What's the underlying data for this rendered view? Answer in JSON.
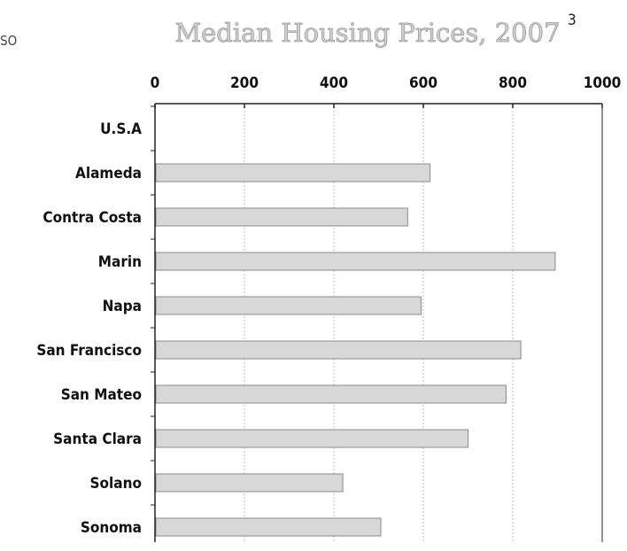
{
  "corner_text": "SO",
  "title": "Median Housing Prices, 2007",
  "title_superscript": "3",
  "chart_data": {
    "type": "bar",
    "orientation": "horizontal",
    "title": "Median Housing Prices, 2007",
    "xlabel": "",
    "ylabel": "",
    "xlim": [
      0,
      1000
    ],
    "x_ticks": [
      0,
      200,
      400,
      600,
      800,
      1000
    ],
    "x_axis_position": "top",
    "grid": true,
    "categories": [
      "U.S.A",
      "Alameda",
      "Contra Costa",
      "Marin",
      "Napa",
      "San Francisco",
      "San Mateo",
      "Santa Clara",
      "Solano",
      "Sonoma"
    ],
    "values": [
      null,
      615,
      565,
      895,
      595,
      818,
      785,
      700,
      420,
      505
    ],
    "colors": {
      "bar_fill": "#d8d8d8",
      "bar_stroke": "#8a8a8a",
      "axis": "#222222",
      "grid": "#bdbdbd",
      "title": "#cfcfcf"
    }
  }
}
